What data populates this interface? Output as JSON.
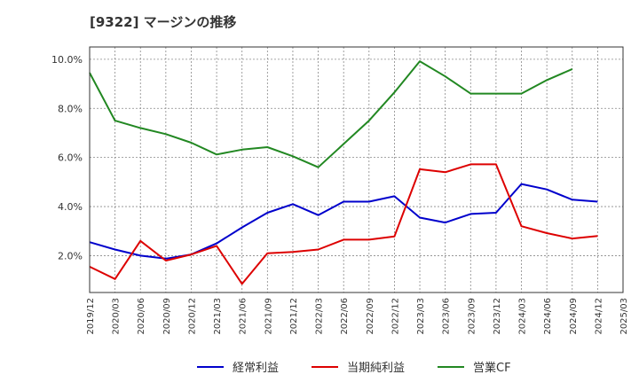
{
  "chart_data": {
    "type": "line",
    "title": "[9322]  マージンの推移",
    "x": [
      "2019/12",
      "2020/03",
      "2020/06",
      "2020/09",
      "2020/12",
      "2021/03",
      "2021/06",
      "2021/09",
      "2021/12",
      "2022/03",
      "2022/06",
      "2022/09",
      "2022/12",
      "2023/03",
      "2023/06",
      "2023/09",
      "2023/12",
      "2024/03",
      "2024/06",
      "2024/09",
      "2024/12",
      "2025/03"
    ],
    "yticks": [
      "2.0%",
      "4.0%",
      "6.0%",
      "8.0%",
      "10.0%"
    ],
    "ylim": [
      0.5,
      10.5
    ],
    "grid": true,
    "legend": "bottom",
    "series": [
      {
        "name": "経常利益",
        "color": "#0000cc",
        "values": [
          2.55,
          2.25,
          2.0,
          1.88,
          2.05,
          2.5,
          3.15,
          3.75,
          4.1,
          3.65,
          4.2,
          4.2,
          4.42,
          3.55,
          3.35,
          3.7,
          3.75,
          4.92,
          4.7,
          4.28,
          4.2,
          null
        ]
      },
      {
        "name": "当期純利益",
        "color": "#dd0000",
        "values": [
          1.55,
          1.05,
          2.6,
          1.8,
          2.05,
          2.4,
          0.85,
          2.1,
          2.15,
          2.25,
          2.65,
          2.65,
          2.78,
          5.52,
          5.4,
          5.72,
          5.72,
          3.2,
          2.92,
          2.7,
          2.8,
          null
        ]
      },
      {
        "name": "営業CF",
        "color": "#228822",
        "values": [
          9.45,
          7.5,
          7.2,
          6.95,
          6.6,
          6.12,
          6.32,
          6.42,
          6.05,
          5.6,
          6.55,
          7.5,
          8.65,
          9.92,
          9.3,
          8.6,
          8.6,
          8.6,
          9.15,
          9.6,
          null,
          null
        ]
      }
    ]
  }
}
